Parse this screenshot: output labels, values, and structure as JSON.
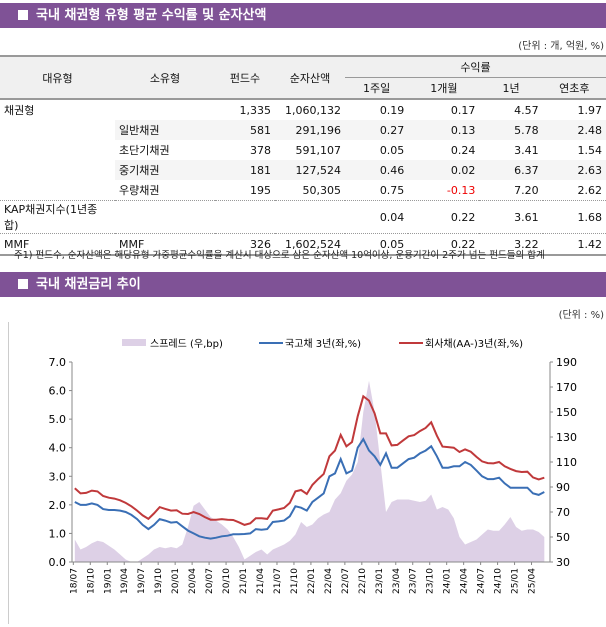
{
  "section1": {
    "title": "국내 채권형 유형 평균 수익률 및 순자산액",
    "unit": "(단위 : 개, 억원, %)"
  },
  "table": {
    "headers": {
      "major": "대유형",
      "minor": "소유형",
      "funds": "펀드수",
      "nav": "순자산액",
      "returns": "수익률",
      "w1": "1주일",
      "m1": "1개월",
      "y1": "1년",
      "ytd": "연초후"
    },
    "rows": [
      [
        "채권형",
        "",
        "1,335",
        "1,060,132",
        "0.19",
        "0.17",
        "4.57",
        "1.97"
      ],
      [
        "",
        "일반채권",
        "581",
        "291,196",
        "0.27",
        "0.13",
        "5.78",
        "2.48"
      ],
      [
        "",
        "초단기채권",
        "378",
        "591,107",
        "0.05",
        "0.24",
        "3.41",
        "1.54"
      ],
      [
        "",
        "중기채권",
        "181",
        "127,524",
        "0.46",
        "0.02",
        "6.37",
        "2.63"
      ],
      [
        "",
        "우량채권",
        "195",
        "50,305",
        "0.75",
        "-0.13",
        "7.20",
        "2.62"
      ],
      [
        "KAP채권지수(1년종합)",
        "",
        "",
        "",
        "0.04",
        "0.22",
        "3.61",
        "1.68"
      ],
      [
        "MMF",
        "MMF",
        "326",
        "1,602,524",
        "0.05",
        "0.22",
        "3.22",
        "1.42"
      ]
    ]
  },
  "footnote": "주1) 펀드수, 순자산액은 해당유형 가중평균수익률을 계산시 대상으로 삼은 순자산액 10억이상, 운용기간이 2주가 넘는 펀드들의 합계",
  "section2": {
    "title": "국내 채권금리 추이",
    "unit": "(단위 : %)"
  },
  "chart_data": {
    "type": "line+area",
    "legend_position": "top",
    "colors": {
      "spread": "#ddd0e6",
      "gov": "#3a6fb5",
      "corp": "#c0393b",
      "header": "#7f5296"
    },
    "left_axis": {
      "ylim": [
        0,
        7
      ],
      "ticks": [
        "0.0",
        "1.0",
        "2.0",
        "3.0",
        "4.0",
        "5.0",
        "6.0",
        "7.0"
      ]
    },
    "right_axis": {
      "ylim": [
        30,
        190
      ],
      "ticks": [
        "30",
        "50",
        "70",
        "90",
        "110",
        "130",
        "150",
        "170",
        "190"
      ]
    },
    "x_ticks": [
      "18/07",
      "18/10",
      "19/01",
      "19/04",
      "19/07",
      "19/10",
      "20/01",
      "20/04",
      "20/07",
      "20/10",
      "21/01",
      "21/04",
      "21/07",
      "21/10",
      "22/01",
      "22/04",
      "22/07",
      "22/10",
      "23/01",
      "23/04",
      "23/07",
      "23/10",
      "24/01",
      "24/04",
      "24/07",
      "24/10",
      "25/01",
      "25/04"
    ],
    "x_start": "2018-07",
    "x_step": "month",
    "series": [
      {
        "name": "스프레드 (우,bp)",
        "axis": "right",
        "type": "area",
        "values": [
          48,
          40,
          42,
          45,
          47,
          46,
          43,
          40,
          36,
          32,
          30,
          30,
          33,
          36,
          40,
          42,
          41,
          42,
          41,
          44,
          58,
          75,
          78,
          72,
          66,
          63,
          60,
          56,
          50,
          42,
          32,
          35,
          38,
          40,
          36,
          40,
          42,
          44,
          47,
          52,
          62,
          58,
          60,
          65,
          68,
          70,
          80,
          85,
          95,
          100,
          110,
          150,
          175,
          150,
          110,
          70,
          78,
          80,
          80,
          80,
          79,
          78,
          79,
          84,
          72,
          74,
          72,
          65,
          50,
          44,
          46,
          48,
          52,
          56,
          55,
          55,
          60,
          66,
          58,
          55,
          56,
          56,
          54,
          50
        ]
      },
      {
        "name": "국고채 3년(좌,%)",
        "axis": "left",
        "type": "line",
        "values": [
          2.1,
          2.0,
          2.0,
          2.05,
          2.0,
          1.85,
          1.82,
          1.82,
          1.8,
          1.75,
          1.65,
          1.5,
          1.3,
          1.15,
          1.3,
          1.5,
          1.45,
          1.38,
          1.4,
          1.25,
          1.1,
          1.0,
          0.9,
          0.85,
          0.82,
          0.85,
          0.9,
          0.92,
          0.97,
          0.97,
          0.98,
          1.0,
          1.15,
          1.13,
          1.15,
          1.4,
          1.42,
          1.45,
          1.6,
          1.95,
          1.9,
          1.8,
          2.1,
          2.25,
          2.4,
          3.0,
          3.1,
          3.6,
          3.1,
          3.2,
          4.0,
          4.3,
          3.9,
          3.7,
          3.4,
          3.8,
          3.3,
          3.3,
          3.45,
          3.6,
          3.65,
          3.8,
          3.9,
          4.05,
          3.7,
          3.3,
          3.3,
          3.35,
          3.35,
          3.5,
          3.4,
          3.2,
          3.0,
          2.9,
          2.9,
          2.95,
          2.75,
          2.6,
          2.6,
          2.6,
          2.6,
          2.4,
          2.35,
          2.45
        ]
      },
      {
        "name": "회사채(AA-)3년(좌,%)",
        "axis": "left",
        "type": "line",
        "values": [
          2.58,
          2.4,
          2.42,
          2.5,
          2.47,
          2.31,
          2.25,
          2.22,
          2.16,
          2.07,
          1.95,
          1.8,
          1.63,
          1.51,
          1.7,
          1.92,
          1.86,
          1.8,
          1.81,
          1.69,
          1.68,
          1.75,
          1.68,
          1.57,
          1.48,
          1.48,
          1.5,
          1.48,
          1.47,
          1.39,
          1.3,
          1.35,
          1.53,
          1.53,
          1.51,
          1.8,
          1.84,
          1.89,
          2.07,
          2.47,
          2.52,
          2.38,
          2.7,
          2.9,
          3.08,
          3.7,
          3.9,
          4.45,
          4.05,
          4.2,
          5.1,
          5.8,
          5.65,
          5.2,
          4.5,
          4.5,
          4.08,
          4.1,
          4.25,
          4.4,
          4.44,
          4.58,
          4.69,
          4.89,
          4.42,
          4.04,
          4.02,
          4.0,
          3.85,
          3.94,
          3.86,
          3.68,
          3.52,
          3.46,
          3.45,
          3.5,
          3.35,
          3.26,
          3.18,
          3.15,
          3.16,
          2.96,
          2.89,
          2.95
        ]
      }
    ]
  }
}
